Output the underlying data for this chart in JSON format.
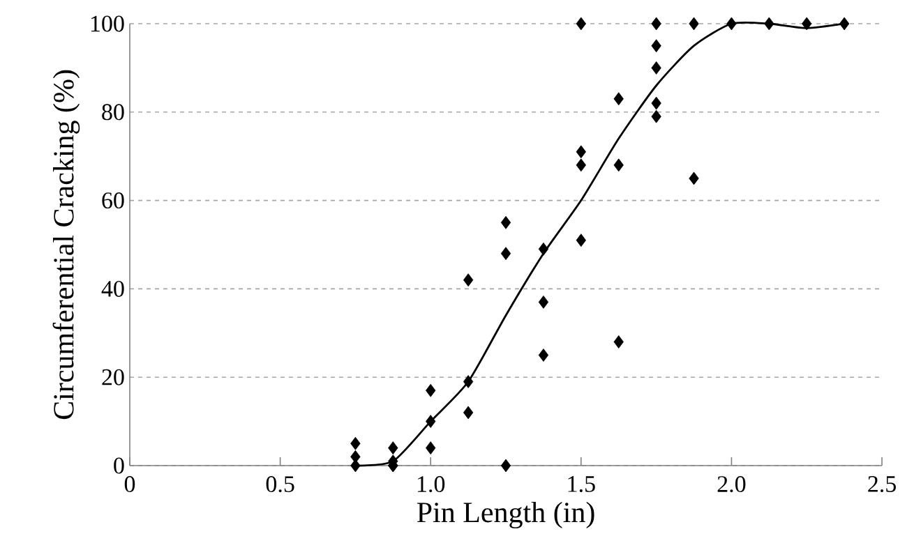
{
  "chart_data": {
    "type": "scatter",
    "xlabel": "Pin Length (in)",
    "ylabel": "Circumferential Cracking (%)",
    "xlim": [
      0,
      2.5
    ],
    "ylim": [
      0,
      100
    ],
    "xticks": [
      0,
      {
        "value": 0.5,
        "label": "0.5"
      },
      {
        "value": 1,
        "label": "1.0"
      },
      {
        "value": 1.5,
        "label": "1.5"
      },
      {
        "value": 2,
        "label": "2.0"
      },
      {
        "value": 2.5,
        "label": "2.5"
      }
    ],
    "yticks": [
      0,
      20,
      40,
      60,
      80,
      100
    ],
    "grid": "y",
    "series": [
      {
        "color": "#000000",
        "marker": "diamond",
        "x": [
          0.75,
          0.75,
          0.75,
          0.875,
          0.875,
          0.875,
          0.875,
          1.0,
          1.0,
          1.0,
          1.125,
          1.125,
          1.125,
          1.25,
          1.25,
          1.25,
          1.375,
          1.375,
          1.375,
          1.5,
          1.5,
          1.5,
          1.5,
          1.625,
          1.625,
          1.625,
          1.75,
          1.75,
          1.75,
          1.75,
          1.75,
          1.875,
          1.875,
          2.0,
          2.125,
          2.25,
          2.375
        ],
        "values": [
          5,
          2,
          0,
          4,
          1,
          0,
          0,
          17,
          10,
          4,
          42,
          19,
          12,
          55,
          48,
          0,
          49,
          37,
          25,
          100,
          71,
          68,
          51,
          83,
          68,
          28,
          100,
          95,
          90,
          82,
          79,
          100,
          65,
          100,
          100,
          100,
          100
        ]
      },
      {
        "type": "line",
        "color": "#000000",
        "marker": "none",
        "line_style": "solid",
        "x": [
          0.75,
          0.875,
          1.0,
          1.125,
          1.25,
          1.375,
          1.5,
          1.625,
          1.75,
          1.875,
          2.0,
          2.125,
          2.25,
          2.375
        ],
        "values": [
          0,
          1,
          10,
          19,
          34,
          48,
          60,
          74,
          86,
          95,
          100,
          100,
          99,
          100
        ]
      }
    ]
  }
}
